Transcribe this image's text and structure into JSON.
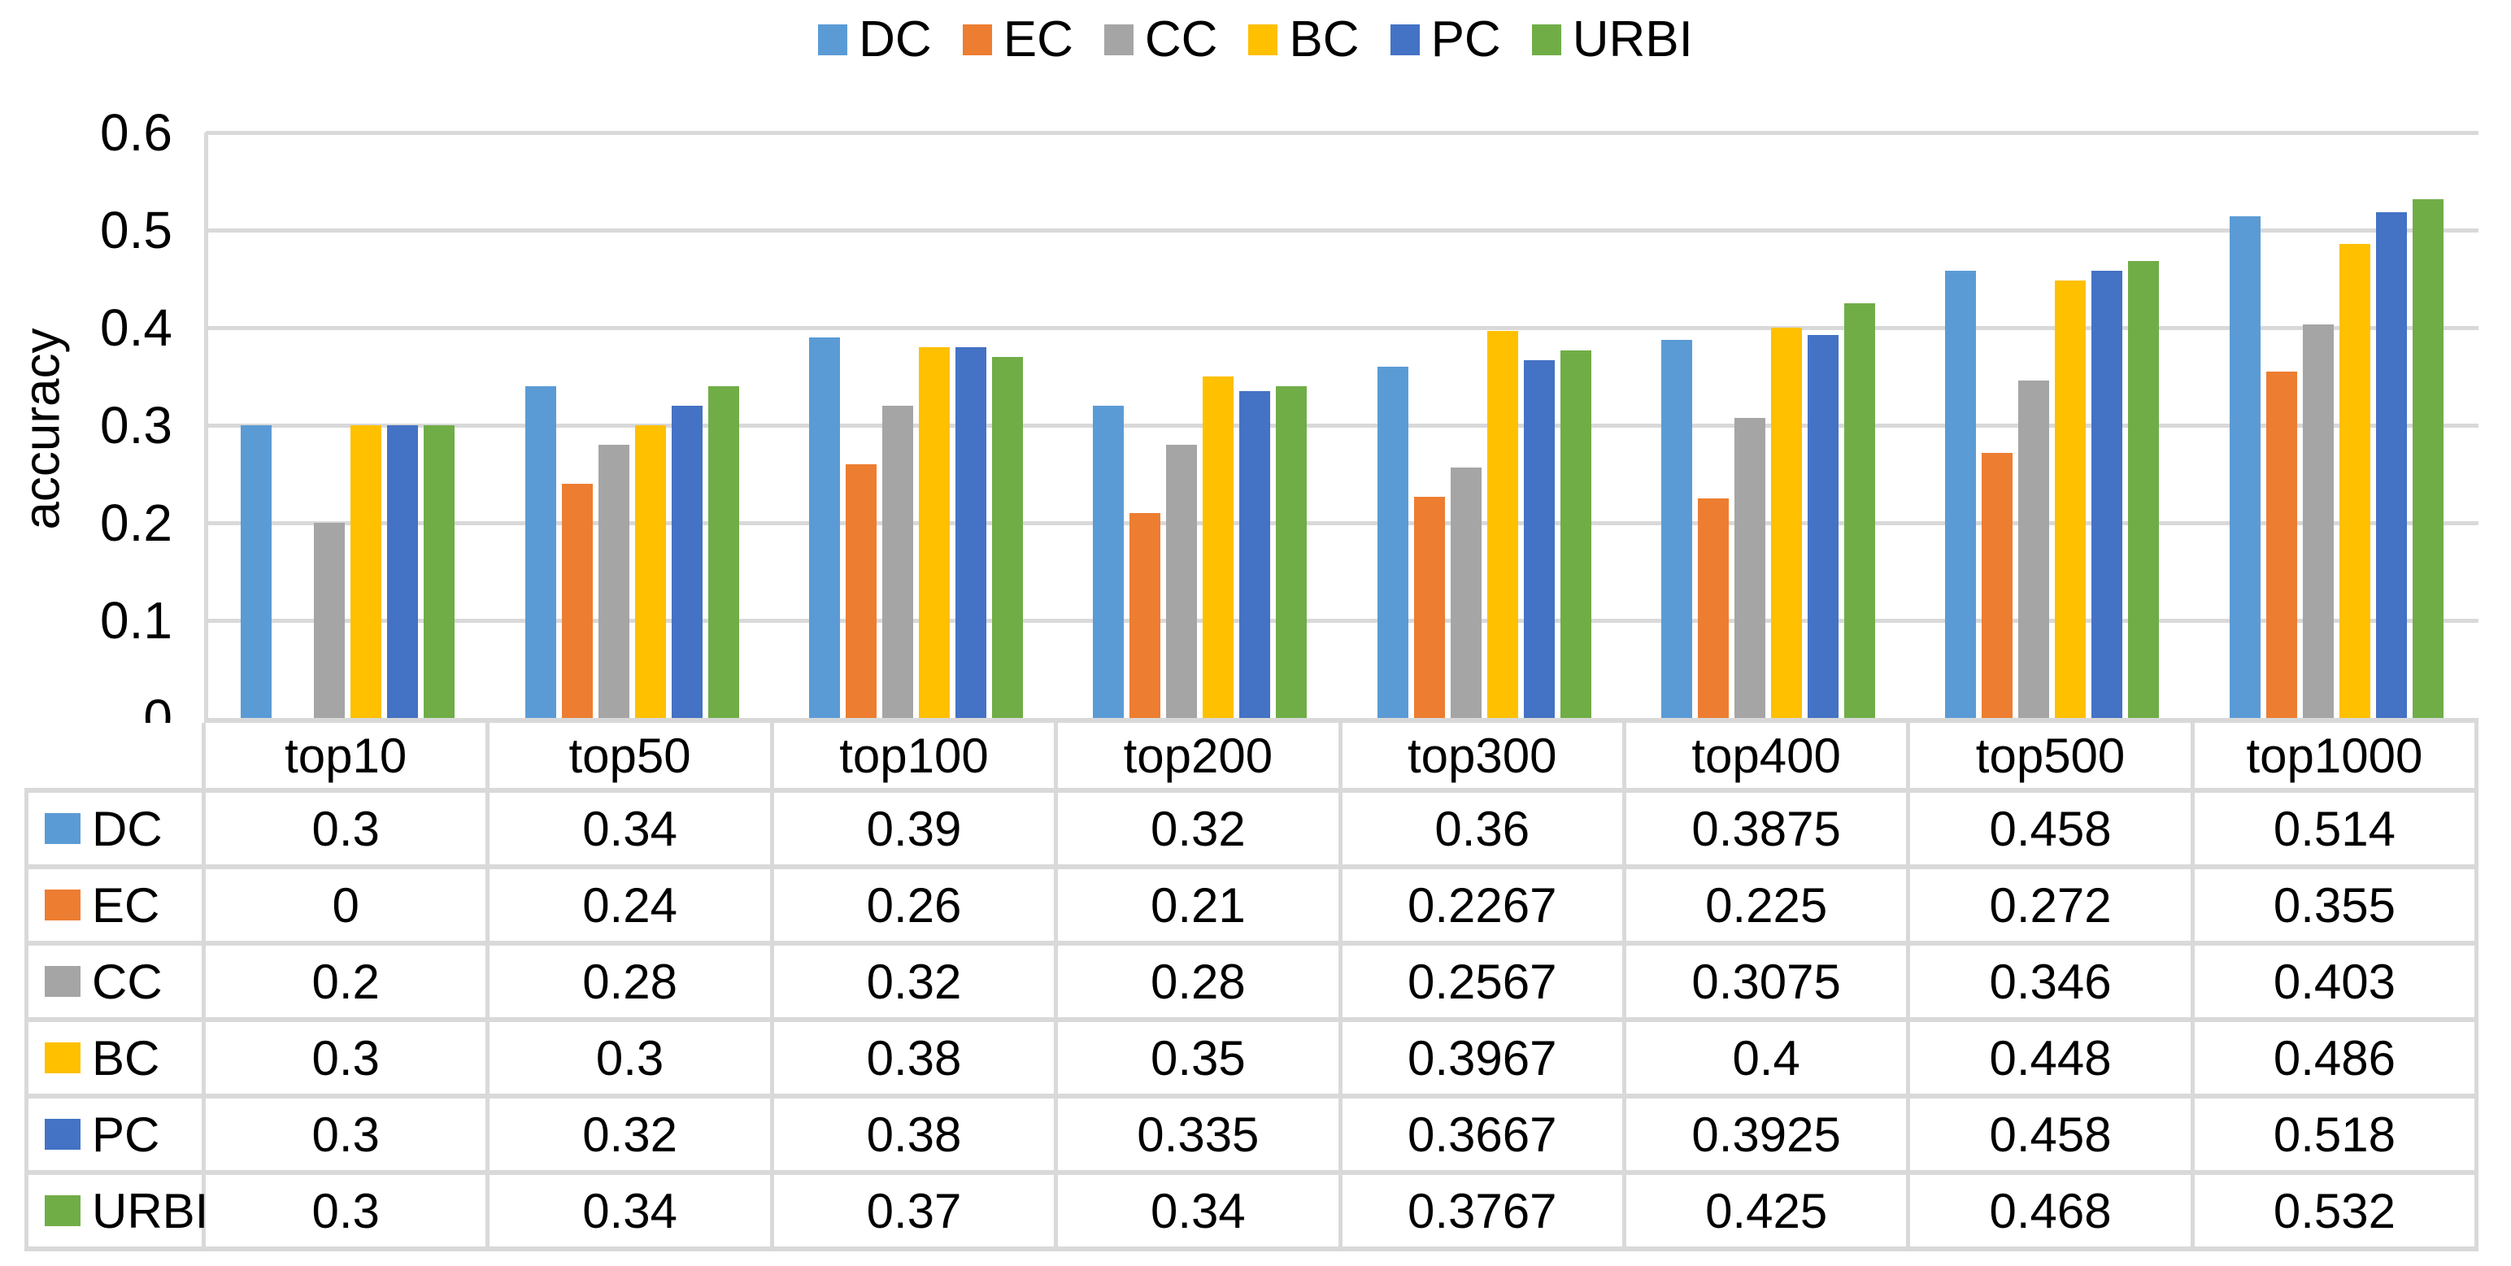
{
  "chart_data": {
    "type": "bar",
    "title": "",
    "xlabel": "",
    "ylabel": "accuracy",
    "ylim": [
      0,
      0.6
    ],
    "grid": true,
    "legend_position": "top",
    "categories": [
      "top10",
      "top50",
      "top100",
      "top200",
      "top300",
      "top400",
      "top500",
      "top1000"
    ],
    "series": [
      {
        "name": "DC",
        "color": "#5B9BD5",
        "values": [
          0.3,
          0.34,
          0.39,
          0.32,
          0.36,
          0.3875,
          0.458,
          0.514
        ]
      },
      {
        "name": "EC",
        "color": "#ED7D31",
        "values": [
          0,
          0.24,
          0.26,
          0.21,
          0.2267,
          0.225,
          0.272,
          0.355
        ]
      },
      {
        "name": "CC",
        "color": "#A5A5A5",
        "values": [
          0.2,
          0.28,
          0.32,
          0.28,
          0.2567,
          0.3075,
          0.346,
          0.403
        ]
      },
      {
        "name": "BC",
        "color": "#FFC000",
        "values": [
          0.3,
          0.3,
          0.38,
          0.35,
          0.3967,
          0.4,
          0.448,
          0.486
        ]
      },
      {
        "name": "PC",
        "color": "#4472C4",
        "values": [
          0.3,
          0.32,
          0.38,
          0.335,
          0.3667,
          0.3925,
          0.458,
          0.518
        ]
      },
      {
        "name": "URBI",
        "color": "#70AD47",
        "values": [
          0.3,
          0.34,
          0.37,
          0.34,
          0.3767,
          0.425,
          0.468,
          0.532
        ]
      }
    ],
    "y_axis": {
      "min": 0,
      "max": 0.6,
      "step": 0.1,
      "tick_labels": [
        "0",
        "0.1",
        "0.2",
        "0.3",
        "0.4",
        "0.5",
        "0.6"
      ]
    }
  },
  "colors": {
    "gridline": "#D9D9D9",
    "table_border": "#D9D9D9",
    "text": "#000000",
    "background": "#FFFFFF"
  }
}
